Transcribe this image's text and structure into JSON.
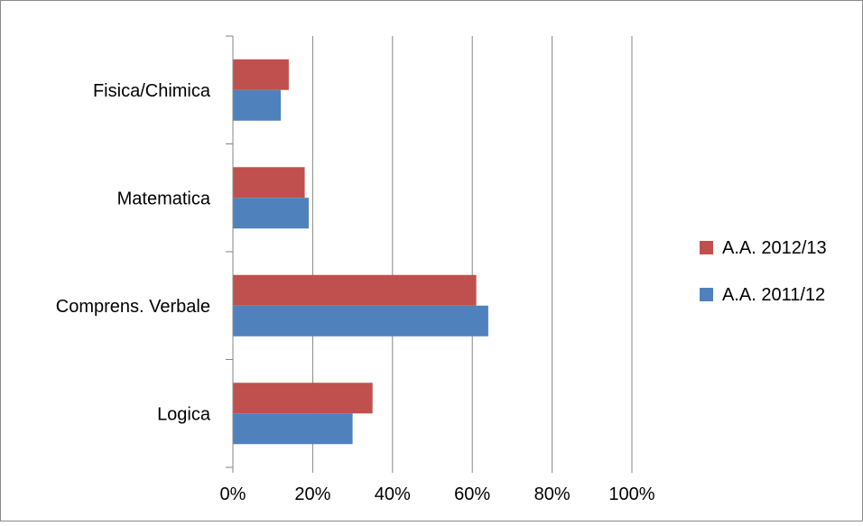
{
  "chart_data": {
    "type": "bar",
    "orientation": "horizontal",
    "categories": [
      "Fisica/Chimica",
      "Matematica",
      "Comprens. Verbale",
      "Logica"
    ],
    "series": [
      {
        "name": "A.A. 2012/13",
        "color": "#c0504d",
        "values": [
          14,
          18,
          61,
          35
        ]
      },
      {
        "name": "A.A. 2011/12",
        "color": "#4f81bd",
        "values": [
          12,
          19,
          64,
          30
        ]
      }
    ],
    "xlim": [
      0,
      100
    ],
    "x_ticks": [
      "0%",
      "20%",
      "40%",
      "60%",
      "80%",
      "100%"
    ],
    "grid": "vertical",
    "legend": "right"
  }
}
